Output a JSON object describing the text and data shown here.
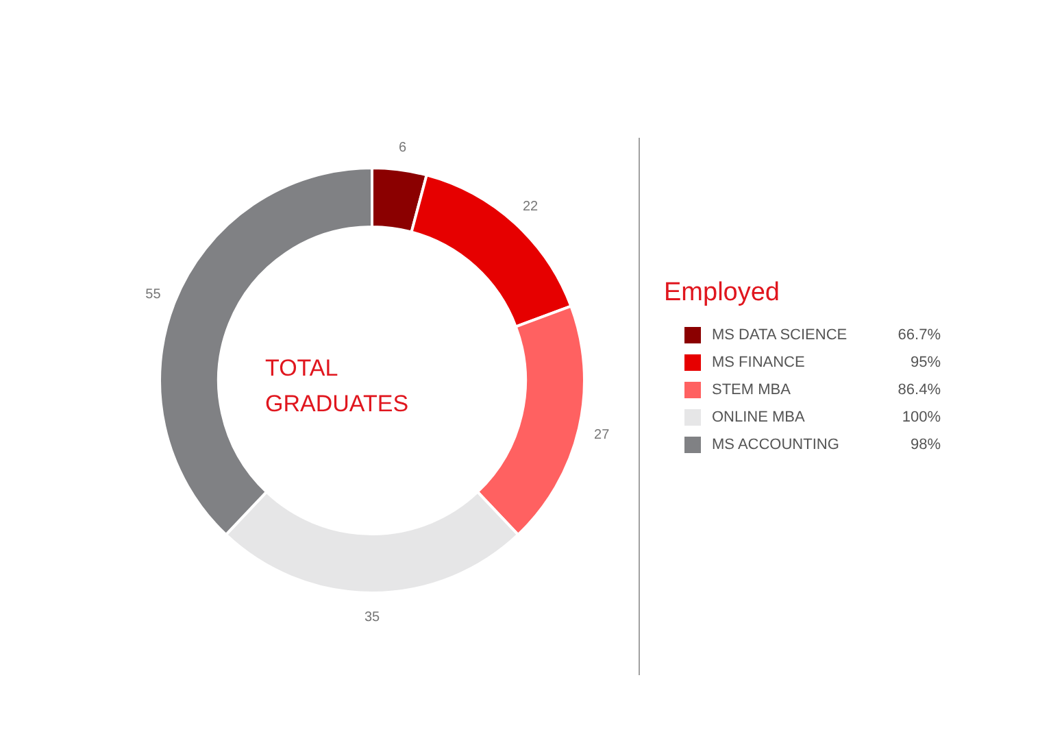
{
  "chart_data": {
    "type": "donut",
    "title": "TOTAL GRADUATES",
    "legend_title": "Employed",
    "categories": [
      "MS DATA SCIENCE",
      "MS FINANCE",
      "STEM MBA",
      "ONLINE MBA",
      "MS ACCOUNTING"
    ],
    "values": [
      6,
      22,
      27,
      35,
      55
    ],
    "colors": [
      "#8b0000",
      "#e60000",
      "#ff6161",
      "#e6e6e7",
      "#808184"
    ],
    "data_labels": true,
    "legend": "right",
    "annotations": [
      "66.7%",
      "95%",
      "86.4%",
      "100%",
      "98%"
    ]
  }
}
